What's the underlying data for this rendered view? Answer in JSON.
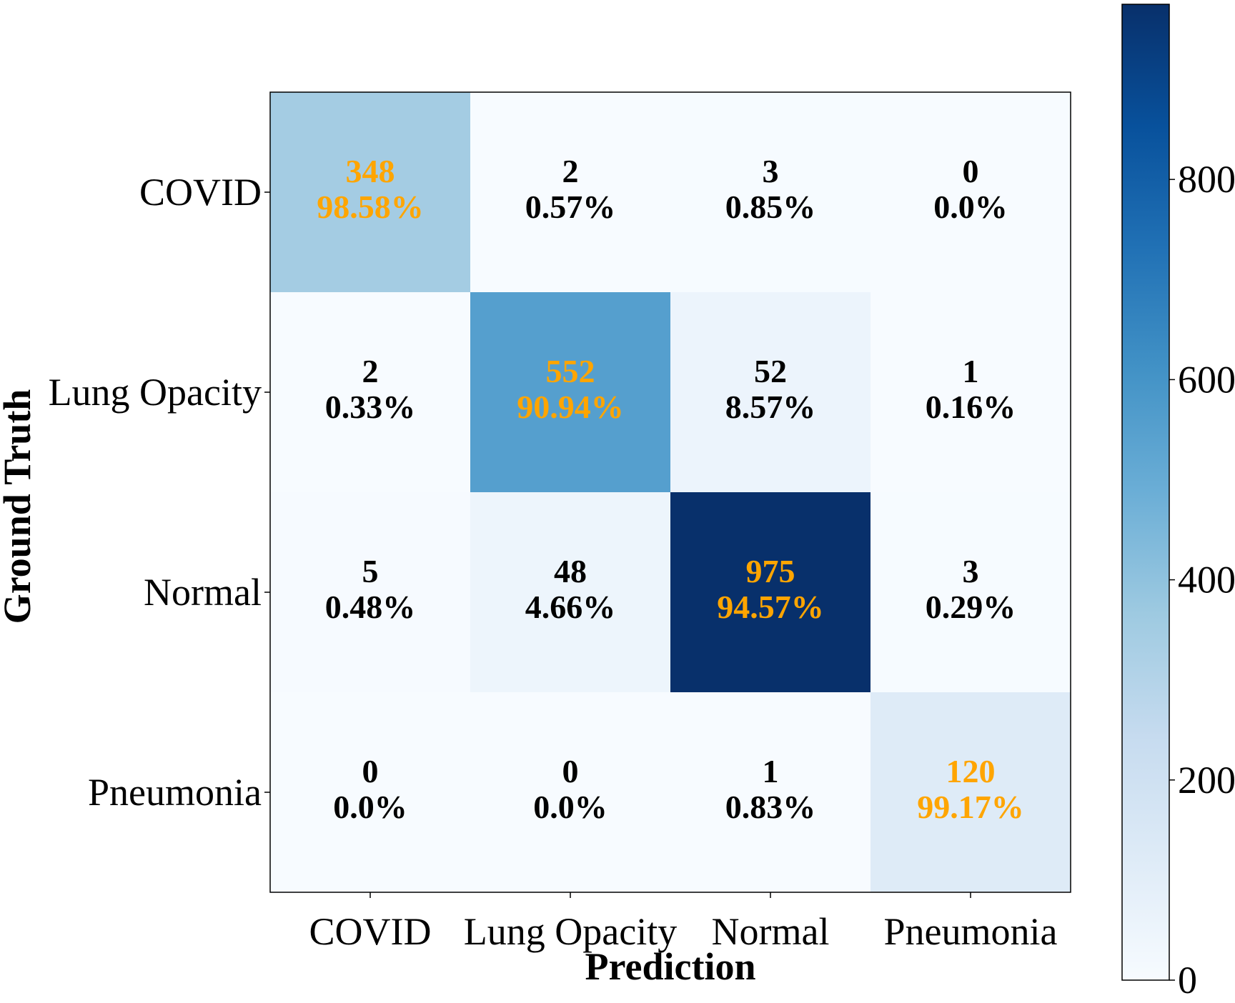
{
  "chart_data": {
    "type": "heatmap",
    "title": "",
    "xlabel": "Prediction",
    "ylabel": "Ground Truth",
    "x_categories": [
      "COVID",
      "Lung Opacity",
      "Normal",
      "Pneumonia"
    ],
    "y_categories": [
      "COVID",
      "Lung Opacity",
      "Normal",
      "Pneumonia"
    ],
    "counts": [
      [
        348,
        2,
        3,
        0
      ],
      [
        2,
        552,
        52,
        1
      ],
      [
        5,
        48,
        975,
        3
      ],
      [
        0,
        0,
        1,
        120
      ]
    ],
    "percents": [
      [
        "98.58%",
        "0.57%",
        "0.85%",
        "0.0%"
      ],
      [
        "0.33%",
        "90.94%",
        "8.57%",
        "0.16%"
      ],
      [
        "0.48%",
        "4.66%",
        "94.57%",
        "0.29%"
      ],
      [
        "0.0%",
        "0.0%",
        "0.83%",
        "99.17%"
      ]
    ],
    "colorbar": {
      "min": 0,
      "max": 975,
      "ticks": [
        0,
        200,
        400,
        600,
        800
      ],
      "colormap": "Blues"
    },
    "colors": {
      "diagonal_text": "#FFA500",
      "offdiagonal_text": "#000000"
    }
  }
}
